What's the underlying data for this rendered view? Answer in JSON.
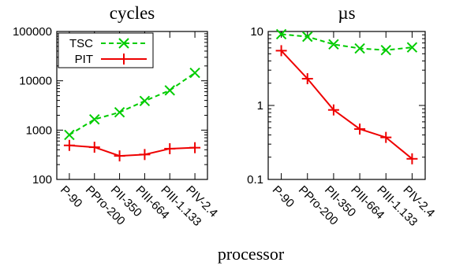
{
  "figure": {
    "xlabel": "processor"
  },
  "chart_data": [
    {
      "type": "line",
      "title": "cycles",
      "xlabel": "processor",
      "ylabel": "",
      "yscale": "log",
      "ylim": [
        100,
        100000
      ],
      "yticks": [
        "100",
        "1000",
        "10000",
        "100000"
      ],
      "categories": [
        "P-90",
        "PPro-200",
        "PII-350",
        "PIII-664",
        "PIII-1.133",
        "PIV-2.4"
      ],
      "grid": false,
      "legend_position": "top-left",
      "series": [
        {
          "name": "TSC",
          "color": "#00cc00",
          "style": "dashed",
          "marker": "x",
          "values": [
            800,
            1650,
            2300,
            3900,
            6400,
            14500
          ]
        },
        {
          "name": "PIT",
          "color": "#ee0000",
          "style": "solid",
          "marker": "+",
          "values": [
            490,
            450,
            300,
            320,
            420,
            440
          ]
        }
      ]
    },
    {
      "type": "line",
      "title": "µs",
      "xlabel": "processor",
      "ylabel": "",
      "yscale": "log",
      "ylim": [
        0.1,
        10
      ],
      "yticks": [
        "0.1",
        "1",
        "10"
      ],
      "categories": [
        "P-90",
        "PPro-200",
        "PII-350",
        "PIII-664",
        "PIII-1.133",
        "PIV-2.4"
      ],
      "grid": false,
      "legend_position": "",
      "series": [
        {
          "name": "TSC",
          "color": "#00cc00",
          "style": "dashed",
          "marker": "x",
          "values": [
            9.2,
            8.5,
            6.7,
            5.9,
            5.6,
            6.1
          ]
        },
        {
          "name": "PIT",
          "color": "#ee0000",
          "style": "solid",
          "marker": "+",
          "values": [
            5.5,
            2.3,
            0.87,
            0.48,
            0.37,
            0.19
          ]
        }
      ]
    }
  ]
}
